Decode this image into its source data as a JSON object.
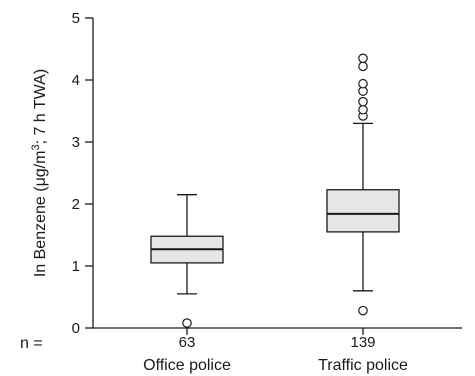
{
  "chart_data": {
    "type": "boxplot",
    "ylabel": {
      "prefix": "In Benzene (μg/m",
      "sup": "3",
      "suffix": "; 7 h TWA)"
    },
    "ylim": [
      0,
      5
    ],
    "yticks": [
      "0",
      "1",
      "2",
      "3",
      "4",
      "5"
    ],
    "n_label": "n =",
    "groups": [
      {
        "name": "Office police",
        "n": "63",
        "whisker_low": 0.55,
        "q1": 1.05,
        "median": 1.27,
        "q3": 1.48,
        "whisker_high": 2.15,
        "outliers": [
          0.08
        ]
      },
      {
        "name": "Traffic police",
        "n": "139",
        "whisker_low": 0.6,
        "q1": 1.55,
        "median": 1.84,
        "q3": 2.23,
        "whisker_high": 3.3,
        "outliers": [
          0.28,
          3.42,
          3.52,
          3.65,
          3.82,
          3.94,
          4.22,
          4.35
        ]
      }
    ],
    "colors": {
      "box_fill": "#e6e6e6",
      "line": "#1a1a1a"
    }
  }
}
